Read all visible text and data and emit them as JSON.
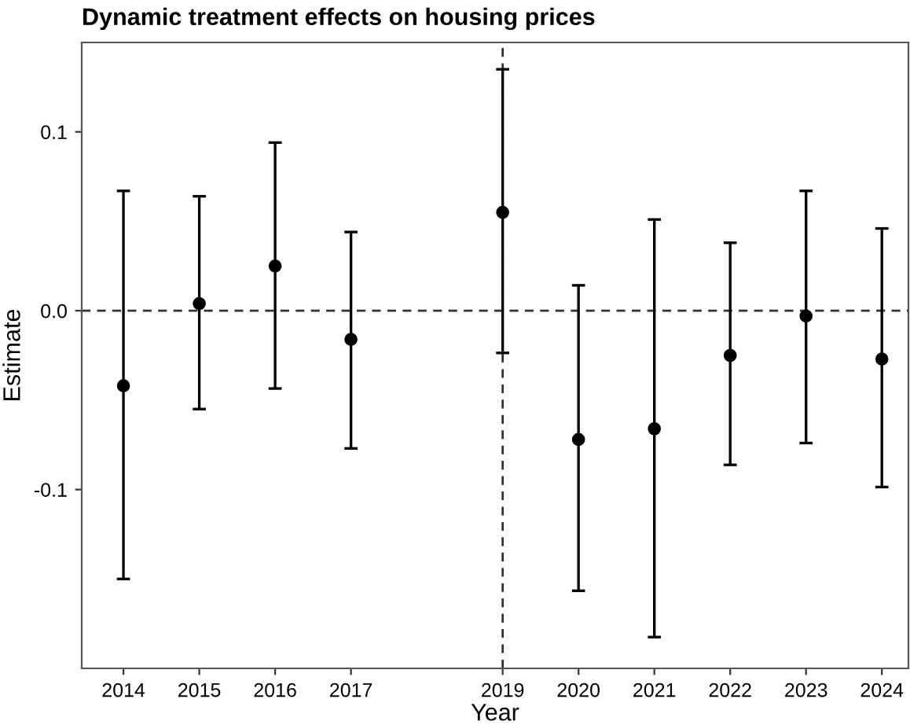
{
  "chart_data": {
    "type": "scatter",
    "title": "Dynamic treatment effects on housing prices",
    "xlabel": "Year",
    "ylabel": "Estimate",
    "x": [
      2014,
      2015,
      2016,
      2017,
      2019,
      2020,
      2021,
      2022,
      2023,
      2024
    ],
    "values": [
      -0.042,
      0.004,
      0.025,
      -0.016,
      0.055,
      -0.072,
      -0.066,
      -0.025,
      -0.003,
      -0.027
    ],
    "errors": [
      [
        -0.15,
        0.067
      ],
      [
        -0.055,
        0.064
      ],
      [
        -0.0435,
        0.094
      ],
      [
        -0.077,
        0.044
      ],
      [
        -0.0236,
        0.135
      ],
      [
        -0.1566,
        0.0142
      ],
      [
        -0.1825,
        0.051
      ],
      [
        -0.0862,
        0.038
      ],
      [
        -0.074,
        0.067
      ],
      [
        -0.0986,
        0.046
      ]
    ],
    "color": "#000000",
    "marker": "circle",
    "xlim": [
      2013.45,
      2024.35
    ],
    "xticks": [
      2014,
      2015,
      2016,
      2017,
      2019,
      2020,
      2021,
      2022,
      2023,
      2024
    ],
    "ylim": [
      -0.2,
      0.15
    ],
    "yticks": [
      -0.1,
      {
        "value": 0,
        "label": "0.0"
      },
      0.1
    ],
    "ref_lines": [
      {
        "axis": "y",
        "value": 0,
        "line_style": "dashed",
        "color": "#333333"
      },
      {
        "axis": "x",
        "value": 2019,
        "line_style": "dashed",
        "color": "#333333"
      }
    ],
    "grid": false
  }
}
